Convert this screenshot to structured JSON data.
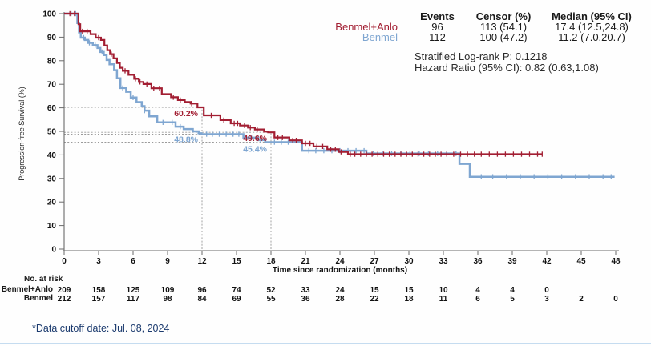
{
  "page": {
    "footer_note": "*Data cutoff  date: Jul. 08, 2024"
  },
  "colors": {
    "benmel_anlo": "#A21E32",
    "benmel": "#7FA6D1",
    "dotted": "#9a9a9a",
    "axis": "#6b6b6b",
    "footer": "#1b3a6e",
    "bottom_rule": "#c5dcf0"
  },
  "legend": {
    "headers": [
      "Events",
      "Censor (%)",
      "Median (95% CI)"
    ],
    "rows": [
      {
        "name": "Benmel+Anlo",
        "events": "96",
        "censor": "113 (54.1)",
        "median": "17.4 (12.5,24.8)"
      },
      {
        "name": "Benmel",
        "events": "112",
        "censor": "100 (47.2)",
        "median": "11.2 (7.0,20.7)"
      }
    ],
    "stats": [
      "Stratified Log-rank P: 0.1218",
      "Hazard Ratio (95% CI): 0.82 (0.63,1.08)"
    ]
  },
  "at_risk": {
    "title": "No. at risk",
    "rows": [
      {
        "name": "Benmel+Anlo",
        "counts": [
          209,
          158,
          125,
          109,
          96,
          74,
          52,
          33,
          24,
          15,
          15,
          10,
          4,
          4,
          0,
          null,
          null
        ]
      },
      {
        "name": "Benmel",
        "counts": [
          212,
          157,
          117,
          98,
          84,
          69,
          55,
          36,
          28,
          22,
          18,
          11,
          6,
          5,
          3,
          2,
          0
        ]
      }
    ]
  },
  "chart_data": {
    "type": "line",
    "subtype": "kaplan-meier-step",
    "title": "",
    "xlabel": "Time since randomization (months)",
    "ylabel": "Progression-free Survival (%)",
    "xlim": [
      0,
      48
    ],
    "ylim": [
      0,
      100
    ],
    "x_ticks": [
      0,
      3,
      6,
      9,
      12,
      15,
      18,
      21,
      24,
      27,
      30,
      33,
      36,
      39,
      42,
      45,
      48
    ],
    "y_ticks": [
      0,
      10,
      20,
      30,
      40,
      50,
      60,
      70,
      80,
      90,
      100
    ],
    "grid": false,
    "legend_position": "top-right",
    "series": [
      {
        "name": "Benmel+Anlo",
        "color": "#A21E32",
        "steps": [
          [
            0,
            100
          ],
          [
            1.25,
            95.5
          ],
          [
            1.4,
            92.5
          ],
          [
            2.3,
            91.3
          ],
          [
            2.75,
            89.8
          ],
          [
            3.2,
            88.8
          ],
          [
            3.5,
            86.5
          ],
          [
            3.75,
            84.5
          ],
          [
            4.0,
            82.8
          ],
          [
            4.3,
            81
          ],
          [
            4.6,
            79
          ],
          [
            4.85,
            77
          ],
          [
            5.1,
            75.7
          ],
          [
            5.6,
            74
          ],
          [
            6.1,
            72.3
          ],
          [
            6.5,
            71
          ],
          [
            6.9,
            70.1
          ],
          [
            7.6,
            68.3
          ],
          [
            8.5,
            65.8
          ],
          [
            9.3,
            64.5
          ],
          [
            9.9,
            63.3
          ],
          [
            10.5,
            62.5
          ],
          [
            11.0,
            61.8
          ],
          [
            11.6,
            60.2
          ],
          [
            12.15,
            56.8
          ],
          [
            13.6,
            54.8
          ],
          [
            14.5,
            53.4
          ],
          [
            15.3,
            52.5
          ],
          [
            16.0,
            51.6
          ],
          [
            16.6,
            50.8
          ],
          [
            17.4,
            49.9
          ],
          [
            17.75,
            49.6
          ],
          [
            18.3,
            47.4
          ],
          [
            19.6,
            46.2
          ],
          [
            20.7,
            44.9
          ],
          [
            21.7,
            43.6
          ],
          [
            22.9,
            42.4
          ],
          [
            23.9,
            41.3
          ],
          [
            24.7,
            40.3
          ],
          [
            41.6,
            40.3
          ]
        ],
        "censor_months": [
          0.5,
          0.9,
          1.6,
          2.0,
          3.0,
          4.1,
          5.3,
          6.2,
          6.6,
          7.2,
          7.8,
          8.3,
          9.5,
          10.1,
          11.1,
          12.8,
          13.9,
          14.8,
          15.1,
          15.7,
          16.2,
          16.8,
          18.6,
          19.0,
          19.9,
          20.2,
          21.0,
          21.4,
          22.0,
          22.5,
          23.2,
          23.6,
          24.1,
          24.9,
          25.3,
          25.8,
          26.3,
          26.8,
          27.3,
          27.8,
          28.3,
          28.8,
          29.3,
          29.8,
          30.3,
          30.8,
          31.3,
          31.8,
          32.3,
          32.8,
          33.3,
          33.9,
          34.5,
          35.1,
          35.7,
          36.3,
          37.0,
          37.7,
          38.4,
          39.1,
          39.8,
          40.5,
          41.2,
          41.6
        ]
      },
      {
        "name": "Benmel",
        "color": "#7FA6D1",
        "steps": [
          [
            0,
            100
          ],
          [
            1.15,
            96
          ],
          [
            1.3,
            92
          ],
          [
            1.45,
            89.8
          ],
          [
            1.8,
            88.8
          ],
          [
            2.1,
            87.6
          ],
          [
            2.5,
            86.6
          ],
          [
            2.9,
            85.4
          ],
          [
            3.15,
            83.7
          ],
          [
            3.45,
            82.4
          ],
          [
            3.7,
            80.3
          ],
          [
            3.95,
            78.5
          ],
          [
            4.35,
            76
          ],
          [
            4.6,
            72.5
          ],
          [
            4.9,
            68.4
          ],
          [
            5.4,
            66.8
          ],
          [
            5.8,
            64.4
          ],
          [
            6.3,
            62.4
          ],
          [
            6.75,
            60.7
          ],
          [
            7.0,
            58.8
          ],
          [
            7.4,
            56.4
          ],
          [
            8.1,
            53.8
          ],
          [
            9.7,
            52.0
          ],
          [
            10.4,
            51.0
          ],
          [
            11.2,
            50.0
          ],
          [
            11.7,
            49.2
          ],
          [
            11.95,
            48.8
          ],
          [
            15.6,
            47.3
          ],
          [
            16.9,
            46.3
          ],
          [
            17.5,
            45.4
          ],
          [
            20.7,
            41.8
          ],
          [
            26.3,
            40.6
          ],
          [
            34.4,
            36.2
          ],
          [
            35.3,
            30.7
          ],
          [
            47.9,
            30.7
          ]
        ],
        "censor_months": [
          0.6,
          1.0,
          1.7,
          2.2,
          2.7,
          3.3,
          5.1,
          6.0,
          7.0,
          8.6,
          9.4,
          10.1,
          12.4,
          12.9,
          13.5,
          14.1,
          14.7,
          15.2,
          16.3,
          17.1,
          18.3,
          18.9,
          19.5,
          21.3,
          21.9,
          22.6,
          23.3,
          24.0,
          24.7,
          25.4,
          26.1,
          26.9,
          27.7,
          28.5,
          29.3,
          30.1,
          30.9,
          31.7,
          32.5,
          33.3,
          34.1,
          36.3,
          37.3,
          38.5,
          39.7,
          40.9,
          42.1,
          43.3,
          44.5,
          45.7,
          46.9,
          47.6
        ]
      }
    ],
    "annotations": [
      {
        "label": "60.2%",
        "month": 12,
        "value": 60.2,
        "color": "#A21E32"
      },
      {
        "label": "48.8%",
        "month": 12,
        "value": 48.8,
        "color": "#7FA6D1"
      },
      {
        "label": "49.6%",
        "month": 18,
        "value": 49.6,
        "color": "#A21E32"
      },
      {
        "label": "45.4%",
        "month": 18,
        "value": 45.4,
        "color": "#7FA6D1"
      }
    ],
    "reference_lines": {
      "horizontal": [
        {
          "value": 60.2,
          "to_month": 12
        },
        {
          "value": 49.6,
          "to_month": 18
        },
        {
          "value": 48.8,
          "to_month": 12
        },
        {
          "value": 45.4,
          "to_month": 18
        }
      ],
      "vertical": [
        {
          "month": 12,
          "to_value": 60.2
        },
        {
          "month": 18,
          "to_value": 49.6
        }
      ]
    }
  }
}
